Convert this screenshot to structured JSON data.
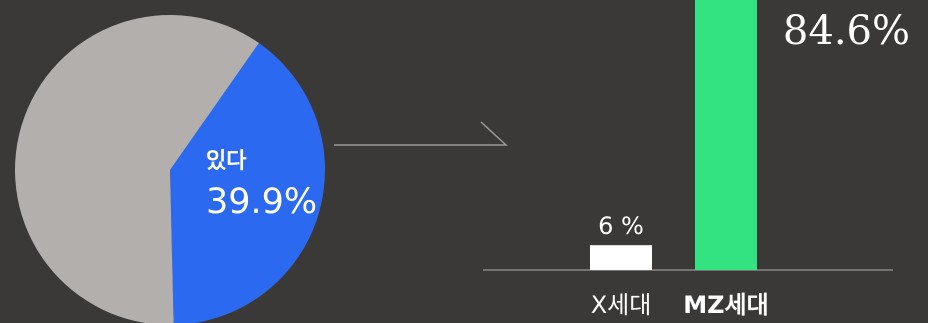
{
  "chart_data": [
    {
      "type": "pie",
      "slices": [
        {
          "label": "있다",
          "value": 39.9,
          "value_label": "39.9%",
          "color": "#2b6af0"
        },
        {
          "label": "",
          "value": 60.1,
          "value_label": "",
          "color": "#b3afad"
        }
      ]
    },
    {
      "type": "bar",
      "categories": [
        "X세대",
        "MZ세대"
      ],
      "values": [
        6,
        84.6
      ],
      "value_labels": [
        "6 %",
        "84.6%"
      ],
      "colors": [
        "#ffffff",
        "#33e382"
      ],
      "ylim": [
        0,
        100
      ]
    }
  ],
  "colors": {
    "background": "#3a3938",
    "axis": "#8a8886",
    "connector": "#9a9896"
  }
}
